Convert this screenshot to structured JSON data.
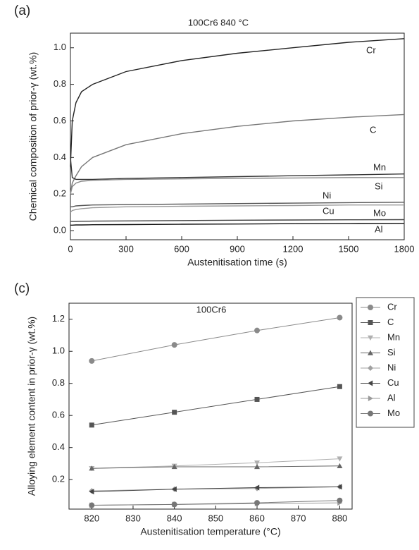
{
  "chart_data": [
    {
      "type": "line",
      "panel_label": "(a)",
      "title": "100Cr6 840 °C",
      "x_label": "Austenitisation time (s)",
      "y_label": "Chemical composition of prior-γ (wt.%)",
      "xlim": [
        0,
        1800
      ],
      "xticks": [
        0,
        300,
        600,
        900,
        1200,
        1500,
        1800
      ],
      "ylim": [
        -0.05,
        1.08
      ],
      "yticks": [
        {
          "value": 0,
          "label": "0.0"
        },
        0.2,
        0.4,
        0.6,
        0.8,
        {
          "value": 1,
          "label": "1.0"
        }
      ],
      "line_labels": true,
      "x": [
        0,
        10,
        30,
        60,
        120,
        300,
        600,
        900,
        1200,
        1500,
        1800
      ],
      "series": [
        {
          "name": "Cr",
          "color": "#222222",
          "values": [
            0.35,
            0.6,
            0.7,
            0.76,
            0.8,
            0.87,
            0.93,
            0.97,
            1.0,
            1.03,
            1.05
          ]
        },
        {
          "name": "C",
          "color": "#777777",
          "values": [
            0.2,
            0.26,
            0.3,
            0.35,
            0.4,
            0.47,
            0.53,
            0.57,
            0.6,
            0.62,
            0.635
          ]
        },
        {
          "name": "Mn",
          "color": "#333333",
          "values": [
            0.4,
            0.29,
            0.28,
            0.28,
            0.28,
            0.285,
            0.29,
            0.295,
            0.3,
            0.305,
            0.31
          ]
        },
        {
          "name": "Si",
          "color": "#888888",
          "values": [
            0.2,
            0.24,
            0.26,
            0.27,
            0.275,
            0.28,
            0.283,
            0.286,
            0.288,
            0.29,
            0.29
          ]
        },
        {
          "name": "Ni",
          "color": "#555555",
          "values": [
            0.13,
            0.13,
            0.135,
            0.137,
            0.14,
            0.142,
            0.145,
            0.148,
            0.15,
            0.153,
            0.155
          ]
        },
        {
          "name": "Cu",
          "color": "#999999",
          "values": [
            0.1,
            0.11,
            0.115,
            0.12,
            0.125,
            0.13,
            0.133,
            0.135,
            0.137,
            0.14,
            0.14
          ]
        },
        {
          "name": "Mo",
          "color": "#444444",
          "values": [
            0.05,
            0.05,
            0.05,
            0.051,
            0.052,
            0.053,
            0.055,
            0.057,
            0.058,
            0.059,
            0.06
          ]
        },
        {
          "name": "Al",
          "color": "#111111",
          "values": [
            0.03,
            0.03,
            0.031,
            0.031,
            0.032,
            0.033,
            0.035,
            0.036,
            0.038,
            0.039,
            0.04
          ]
        }
      ]
    },
    {
      "type": "line",
      "panel_label": "(c)",
      "title": "100Cr6",
      "x_label": "Austenitisation temperature (°C)",
      "y_label": "Alloying element content in prior-γ (wt.%)",
      "xlim": [
        814.5,
        883
      ],
      "xticks": [
        820,
        830,
        840,
        850,
        860,
        870,
        880
      ],
      "ylim": [
        0.016,
        1.3
      ],
      "yticks": [
        0.2,
        0.4,
        0.6,
        0.8,
        {
          "value": 1,
          "label": "1.0"
        },
        1.2
      ],
      "markers": true,
      "legend": "upper right",
      "x": [
        820,
        840,
        860,
        880
      ],
      "series": [
        {
          "name": "Cr",
          "color": "#8a8a8a",
          "marker": "circle",
          "values": [
            0.94,
            1.04,
            1.13,
            1.21
          ]
        },
        {
          "name": "C",
          "color": "#555555",
          "marker": "square",
          "values": [
            0.54,
            0.62,
            0.7,
            0.78
          ]
        },
        {
          "name": "Mn",
          "color": "#b0b0b0",
          "marker": "triangle-down",
          "values": [
            0.27,
            0.285,
            0.305,
            0.33
          ]
        },
        {
          "name": "Si",
          "color": "#666666",
          "marker": "triangle-up",
          "values": [
            0.27,
            0.28,
            0.28,
            0.285
          ]
        },
        {
          "name": "Ni",
          "color": "#a0a0a0",
          "marker": "diamond",
          "values": [
            0.13,
            0.14,
            0.145,
            0.155
          ]
        },
        {
          "name": "Cu",
          "color": "#444444",
          "marker": "triangle-left",
          "values": [
            0.125,
            0.14,
            0.15,
            0.155
          ]
        },
        {
          "name": "Al",
          "color": "#9a9a9a",
          "marker": "triangle-right",
          "values": [
            0.04,
            0.045,
            0.05,
            0.055
          ]
        },
        {
          "name": "Mo",
          "color": "#777777",
          "marker": "circle",
          "values": [
            0.04,
            0.045,
            0.055,
            0.07
          ]
        }
      ]
    }
  ]
}
